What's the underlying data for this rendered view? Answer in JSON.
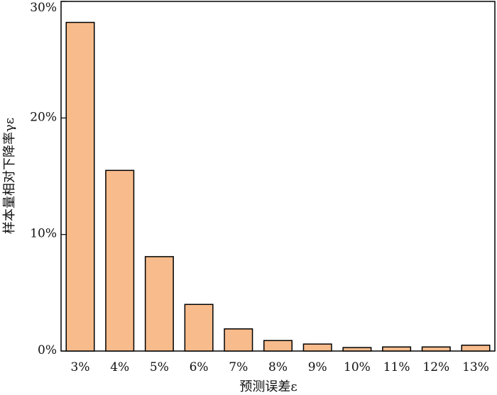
{
  "chart_data": {
    "type": "bar",
    "categories": [
      "3%",
      "4%",
      "5%",
      "6%",
      "7%",
      "8%",
      "9%",
      "10%",
      "11%",
      "12%",
      "13%"
    ],
    "values": [
      28.2,
      15.5,
      8.1,
      4.0,
      1.9,
      0.9,
      0.6,
      0.3,
      0.35,
      0.35,
      0.5
    ],
    "xlabel": "预测误差ε",
    "ylabel": "样本量相对下降率γε",
    "ylim": [
      0,
      30
    ],
    "yticks": [
      0,
      10,
      20,
      30
    ],
    "ytick_labels": [
      "0%",
      "10%",
      "20%",
      "30%"
    ],
    "bar_color": "#f8bb8c",
    "bar_edge_color": "#000000",
    "grid": false,
    "legend": false
  }
}
